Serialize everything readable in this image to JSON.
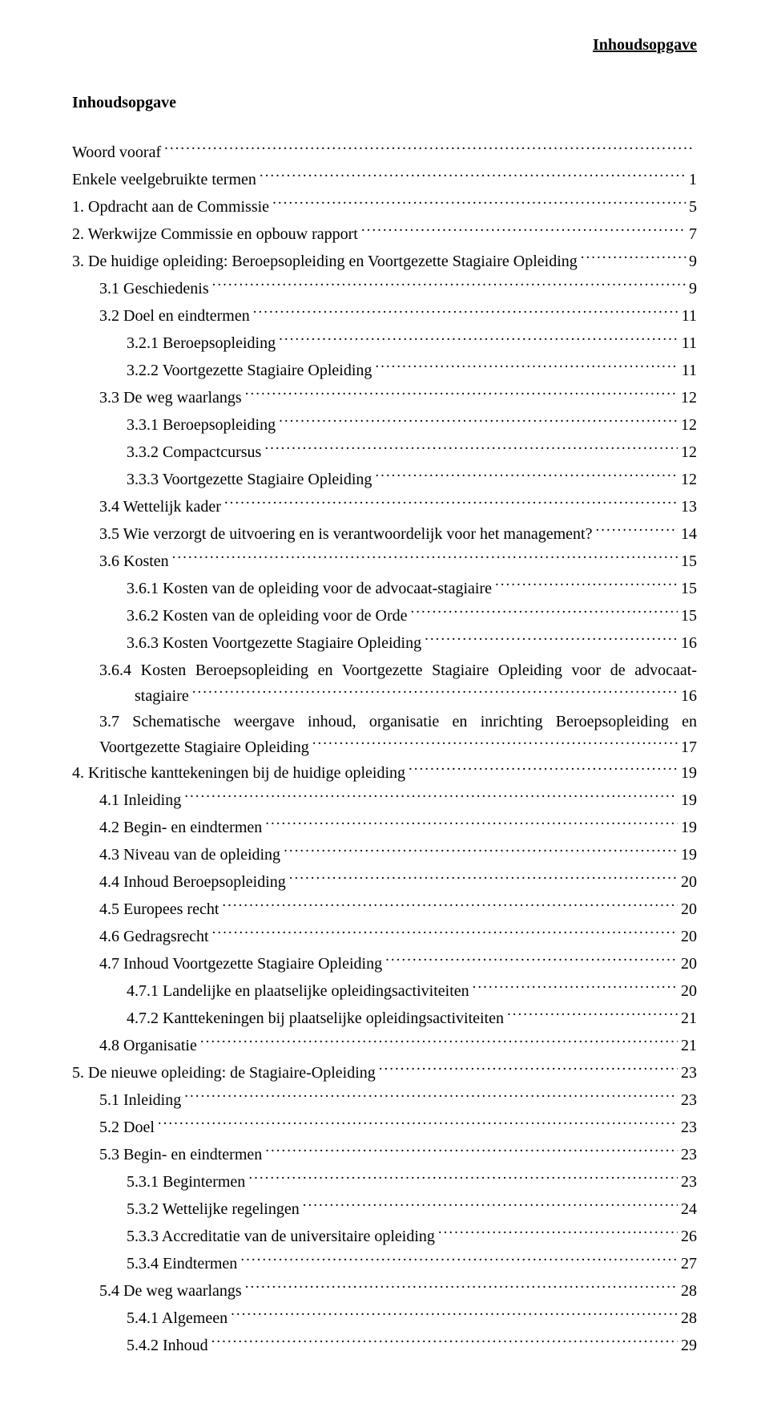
{
  "header_right": "Inhoudsopgave",
  "title": "Inhoudsopgave",
  "entries": [
    {
      "indent": 0,
      "label": "Woord vooraf",
      "page": ""
    },
    {
      "indent": 0,
      "label": "Enkele veelgebruikte termen",
      "page": "1"
    },
    {
      "indent": 0,
      "label": "1.  Opdracht aan de Commissie",
      "page": "5"
    },
    {
      "indent": 0,
      "label": "2.  Werkwijze Commissie en opbouw rapport",
      "page": "7"
    },
    {
      "indent": 0,
      "label": "3.  De huidige opleiding: Beroepsopleiding en Voortgezette Stagiaire Opleiding",
      "page": "9"
    },
    {
      "indent": 1,
      "label": "3.1  Geschiedenis",
      "page": "9"
    },
    {
      "indent": 1,
      "label": "3.2  Doel en eindtermen",
      "page": "11"
    },
    {
      "indent": 2,
      "label": "3.2.1  Beroepsopleiding",
      "page": "11"
    },
    {
      "indent": 2,
      "label": "3.2.2  Voortgezette Stagiaire Opleiding",
      "page": "11"
    },
    {
      "indent": 1,
      "label": "3.3  De weg waarlangs",
      "page": "12"
    },
    {
      "indent": 2,
      "label": "3.3.1  Beroepsopleiding",
      "page": "12"
    },
    {
      "indent": 2,
      "label": "3.3.2  Compactcursus",
      "page": "12"
    },
    {
      "indent": 2,
      "label": "3.3.3  Voortgezette Stagiaire Opleiding",
      "page": "12"
    },
    {
      "indent": 1,
      "label": "3.4  Wettelijk kader",
      "page": "13"
    },
    {
      "indent": 1,
      "label": "3.5  Wie verzorgt de uitvoering en is verantwoordelijk voor het management?",
      "page": "14"
    },
    {
      "indent": 1,
      "label": "3.6  Kosten",
      "page": "15"
    },
    {
      "indent": 2,
      "label": "3.6.1  Kosten van de opleiding voor de advocaat-stagiaire",
      "page": "15"
    },
    {
      "indent": 2,
      "label": "3.6.2  Kosten van de opleiding voor de Orde",
      "page": "15"
    },
    {
      "indent": 2,
      "label": "3.6.3  Kosten Voortgezette Stagiaire Opleiding",
      "page": "16"
    },
    {
      "type": "wrap",
      "indent": 1,
      "line1": "3.6.4  Kosten Beroepsopleiding en Voortgezette Stagiaire Opleiding voor de advocaat-",
      "line2": "stagiaire",
      "page": "16"
    },
    {
      "type": "wrap2",
      "indent": 1,
      "line1": "3.7  Schematische  weergave  inhoud,  organisatie  en  inrichting  Beroepsopleiding  en",
      "line2": "Voortgezette Stagiaire Opleiding",
      "page": "17"
    },
    {
      "indent": 0,
      "label": "4.  Kritische kanttekeningen bij de huidige opleiding",
      "page": "19"
    },
    {
      "indent": 1,
      "label": "4.1  Inleiding",
      "page": "19"
    },
    {
      "indent": 1,
      "label": "4.2  Begin- en eindtermen",
      "page": "19"
    },
    {
      "indent": 1,
      "label": "4.3  Niveau van de opleiding",
      "page": "19"
    },
    {
      "indent": 1,
      "label": "4.4  Inhoud Beroepsopleiding",
      "page": "20"
    },
    {
      "indent": 1,
      "label": "4.5  Europees recht",
      "page": "20"
    },
    {
      "indent": 1,
      "label": "4.6  Gedragsrecht",
      "page": "20"
    },
    {
      "indent": 1,
      "label": "4.7  Inhoud Voortgezette Stagiaire Opleiding",
      "page": "20"
    },
    {
      "indent": 2,
      "label": "4.7.1  Landelijke en plaatselijke opleidingsactiviteiten",
      "page": "20"
    },
    {
      "indent": 2,
      "label": "4.7.2  Kanttekeningen bij plaatselijke opleidingsactiviteiten",
      "page": "21"
    },
    {
      "indent": 1,
      "label": "4.8  Organisatie",
      "page": "21"
    },
    {
      "indent": 0,
      "label": "5.  De nieuwe opleiding: de Stagiaire-Opleiding",
      "page": "23"
    },
    {
      "indent": 1,
      "label": "5.1  Inleiding",
      "page": "23"
    },
    {
      "indent": 1,
      "label": "5.2  Doel",
      "page": "23"
    },
    {
      "indent": 1,
      "label": "5.3  Begin- en eindtermen",
      "page": "23"
    },
    {
      "indent": 2,
      "label": "5.3.1  Begintermen",
      "page": "23"
    },
    {
      "indent": 2,
      "label": "5.3.2  Wettelijke regelingen",
      "page": "24"
    },
    {
      "indent": 2,
      "label": "5.3.3  Accreditatie van de universitaire opleiding",
      "page": "26"
    },
    {
      "indent": 2,
      "label": "5.3.4  Eindtermen",
      "page": "27"
    },
    {
      "indent": 1,
      "label": "5.4  De weg waarlangs",
      "page": "28"
    },
    {
      "indent": 2,
      "label": "5.4.1  Algemeen",
      "page": "28"
    },
    {
      "indent": 2,
      "label": "5.4.2  Inhoud",
      "page": "29"
    }
  ]
}
